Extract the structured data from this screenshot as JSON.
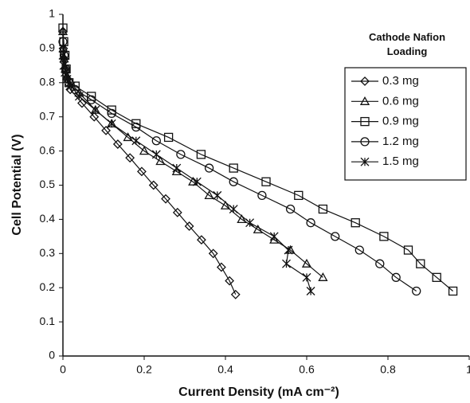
{
  "chart_data": {
    "type": "line",
    "x_label": "Current Density (mA cm⁻²)",
    "y_label": "Cell Potential (V)",
    "legend_title": "Cathode Nafion Loading",
    "legend": "upper right",
    "xlim": [
      0,
      1
    ],
    "xticks": [
      0,
      0.2,
      0.4,
      0.6,
      0.8,
      1
    ],
    "ylim": [
      0,
      1
    ],
    "yticks": [
      0,
      0.1,
      0.2,
      0.3,
      0.4,
      0.5,
      0.6,
      0.7,
      0.8,
      0.9,
      1
    ],
    "series": [
      {
        "name": "0.3 mg",
        "color": "#111111",
        "marker": "diamond",
        "x": [
          0,
          0.001,
          0.003,
          0.006,
          0.01,
          0.018,
          0.047,
          0.077,
          0.106,
          0.135,
          0.165,
          0.194,
          0.223,
          0.253,
          0.282,
          0.311,
          0.341,
          0.37,
          0.39,
          0.41,
          0.425
        ],
        "values": [
          0.95,
          0.9,
          0.87,
          0.84,
          0.81,
          0.78,
          0.74,
          0.7,
          0.66,
          0.62,
          0.58,
          0.54,
          0.5,
          0.46,
          0.42,
          0.38,
          0.34,
          0.3,
          0.26,
          0.22,
          0.18
        ]
      },
      {
        "name": "0.6 mg",
        "color": "#111111",
        "marker": "triangle",
        "x": [
          0,
          0.001,
          0.003,
          0.006,
          0.01,
          0.02,
          0.04,
          0.08,
          0.12,
          0.16,
          0.2,
          0.24,
          0.28,
          0.32,
          0.36,
          0.4,
          0.44,
          0.48,
          0.52,
          0.56,
          0.6,
          0.64
        ],
        "values": [
          0.95,
          0.9,
          0.87,
          0.84,
          0.82,
          0.8,
          0.77,
          0.72,
          0.68,
          0.64,
          0.6,
          0.57,
          0.54,
          0.51,
          0.47,
          0.44,
          0.4,
          0.37,
          0.34,
          0.31,
          0.27,
          0.23
        ]
      },
      {
        "name": "0.9 mg",
        "color": "#111111",
        "marker": "square",
        "x": [
          0,
          0.002,
          0.005,
          0.008,
          0.015,
          0.03,
          0.07,
          0.12,
          0.18,
          0.26,
          0.34,
          0.42,
          0.5,
          0.58,
          0.64,
          0.72,
          0.79,
          0.85,
          0.88,
          0.92,
          0.96
        ],
        "values": [
          0.96,
          0.92,
          0.88,
          0.84,
          0.8,
          0.79,
          0.76,
          0.72,
          0.68,
          0.64,
          0.59,
          0.55,
          0.51,
          0.47,
          0.43,
          0.39,
          0.35,
          0.31,
          0.27,
          0.23,
          0.19
        ]
      },
      {
        "name": "1.2 mg",
        "color": "#111111",
        "marker": "circle",
        "x": [
          0,
          0.003,
          0.007,
          0.015,
          0.03,
          0.07,
          0.12,
          0.18,
          0.23,
          0.29,
          0.36,
          0.42,
          0.49,
          0.56,
          0.61,
          0.67,
          0.73,
          0.78,
          0.82,
          0.87
        ],
        "values": [
          0.92,
          0.88,
          0.84,
          0.8,
          0.78,
          0.75,
          0.71,
          0.67,
          0.63,
          0.59,
          0.55,
          0.51,
          0.47,
          0.43,
          0.39,
          0.35,
          0.31,
          0.27,
          0.23,
          0.19
        ]
      },
      {
        "name": "1.5 mg",
        "color": "#111111",
        "marker": "star",
        "x": [
          0,
          0.002,
          0.005,
          0.01,
          0.02,
          0.04,
          0.08,
          0.12,
          0.18,
          0.23,
          0.28,
          0.33,
          0.38,
          0.42,
          0.46,
          0.52,
          0.555,
          0.55,
          0.6,
          0.61
        ],
        "values": [
          0.88,
          0.85,
          0.83,
          0.81,
          0.79,
          0.76,
          0.72,
          0.68,
          0.63,
          0.59,
          0.55,
          0.51,
          0.47,
          0.43,
          0.39,
          0.35,
          0.31,
          0.27,
          0.23,
          0.19
        ]
      }
    ]
  }
}
